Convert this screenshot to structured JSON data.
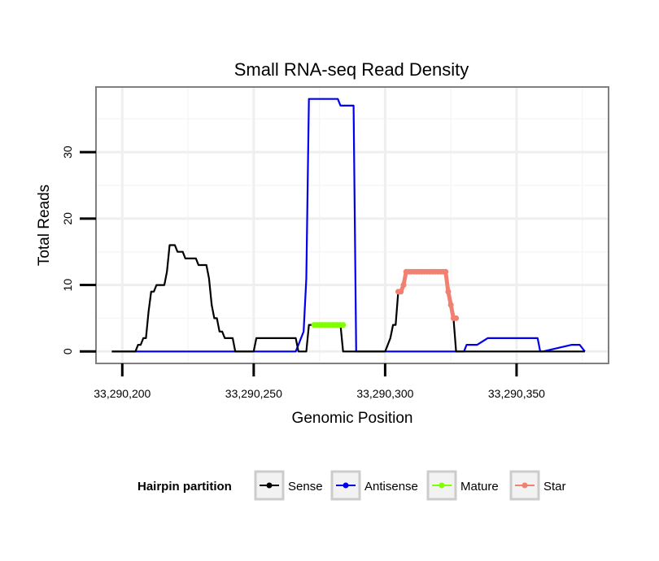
{
  "chart_data": {
    "type": "line",
    "title": "Small RNA-seq Read Density",
    "xlabel": "Genomic Position",
    "ylabel": "Total Reads",
    "xlim": [
      33290190,
      33290385
    ],
    "ylim": [
      -1.8,
      39.8
    ],
    "x_ticks": [
      33290200,
      33290250,
      33290300,
      33290350
    ],
    "x_tick_labels": [
      "33,290,200",
      "33,290,250",
      "33,290,300",
      "33,290,350"
    ],
    "y_ticks": [
      0,
      10,
      20,
      30
    ],
    "y_tick_labels": [
      "0",
      "10",
      "20",
      "30"
    ],
    "grid": true,
    "legend": {
      "title": "Hairpin partition",
      "position": "bottom",
      "entries": [
        "Sense",
        "Antisense",
        "Mature",
        "Star"
      ]
    },
    "series": [
      {
        "name": "Sense",
        "color": "#000000",
        "markers": false,
        "x": [
          33290196,
          33290205,
          33290206,
          33290207,
          33290208,
          33290209,
          33290210,
          33290211,
          33290212,
          33290213,
          33290214,
          33290215,
          33290216,
          33290217,
          33290218,
          33290219,
          33290220,
          33290221,
          33290222,
          33290223,
          33290224,
          33290225,
          33290226,
          33290227,
          33290228,
          33290229,
          33290230,
          33290231,
          33290232,
          33290233,
          33290234,
          33290235,
          33290236,
          33290237,
          33290238,
          33290239,
          33290240,
          33290241,
          33290242,
          33290243,
          33290244,
          33290245,
          33290246,
          33290247,
          33290248,
          33290249,
          33290250,
          33290251,
          33290252,
          33290262,
          33290263,
          33290266,
          33290267,
          33290268,
          33290269,
          33290270,
          33290271,
          33290272,
          33290273,
          33290281,
          33290282,
          33290283,
          33290284,
          33290285,
          33290295,
          33290296,
          33290297,
          33290298,
          33290299,
          33290300,
          33290301,
          33290302,
          33290303,
          33290304,
          33290305,
          33290306,
          33290307,
          33290308,
          33290309,
          33290310,
          33290311,
          33290319,
          33290320,
          33290321,
          33290322,
          33290323,
          33290324,
          33290325,
          33290326,
          33290327,
          33290328,
          33290376
        ],
        "y": [
          0,
          0,
          1,
          1,
          2,
          2,
          6,
          9,
          9,
          10,
          10,
          10,
          10,
          12,
          16,
          16,
          16,
          15,
          15,
          15,
          14,
          14,
          14,
          14,
          14,
          13,
          13,
          13,
          13,
          11,
          7,
          5,
          5,
          3,
          3,
          2,
          2,
          2,
          2,
          0,
          0,
          0,
          0,
          0,
          0,
          0,
          0,
          2,
          2,
          2,
          2,
          2,
          0,
          0,
          0,
          0,
          4,
          4,
          4,
          4,
          4,
          4,
          0,
          0,
          0,
          0,
          0,
          0,
          0,
          0,
          1,
          2,
          4,
          4,
          9,
          9,
          10,
          12,
          12,
          12,
          12,
          12,
          12,
          12,
          12,
          12,
          9,
          7,
          5,
          0,
          0,
          0
        ]
      },
      {
        "name": "Antisense",
        "color": "#0000ee",
        "markers": false,
        "x": [
          33290196,
          33290225,
          33290226,
          33290231,
          33290232,
          33290263,
          33290264,
          33290266,
          33290267,
          33290268,
          33290269,
          33290270,
          33290271,
          33290272,
          33290273,
          33290281,
          33290282,
          33290283,
          33290284,
          33290285,
          33290286,
          33290287,
          33290288,
          33290289,
          33290290,
          33290319,
          33290320,
          33290321,
          33290322,
          33290323,
          33290324,
          33290328,
          33290329,
          33290330,
          33290331,
          33290332,
          33290333,
          33290334,
          33290335,
          33290339,
          33290340,
          33290341,
          33290342,
          33290354,
          33290355,
          33290356,
          33290357,
          33290358,
          33290359,
          33290360,
          33290371,
          33290372,
          33290374,
          33290376
        ],
        "y": [
          0,
          0,
          0,
          0,
          0,
          0,
          0,
          0,
          1,
          2,
          3,
          11,
          38,
          38,
          38,
          38,
          38,
          37,
          37,
          37,
          37,
          37,
          37,
          0,
          0,
          0,
          0,
          0,
          0,
          0,
          0,
          0,
          0,
          0,
          1,
          1,
          1,
          1,
          1,
          2,
          2,
          2,
          2,
          2,
          2,
          2,
          2,
          2,
          0,
          0,
          1,
          1,
          1,
          0
        ]
      },
      {
        "name": "Mature",
        "color": "#7fff00",
        "markers": true,
        "x": [
          33290273,
          33290274,
          33290275,
          33290276,
          33290277,
          33290278,
          33290279,
          33290280,
          33290281,
          33290282,
          33290283,
          33290284
        ],
        "y": [
          4,
          4,
          4,
          4,
          4,
          4,
          4,
          4,
          4,
          4,
          4,
          4
        ]
      },
      {
        "name": "Star",
        "color": "#f08070",
        "markers": true,
        "x": [
          33290305,
          33290306,
          33290307,
          33290308,
          33290309,
          33290310,
          33290311,
          33290312,
          33290313,
          33290314,
          33290315,
          33290316,
          33290317,
          33290318,
          33290319,
          33290320,
          33290321,
          33290322,
          33290323,
          33290324,
          33290325,
          33290326,
          33290327
        ],
        "y": [
          9,
          9,
          10,
          12,
          12,
          12,
          12,
          12,
          12,
          12,
          12,
          12,
          12,
          12,
          12,
          12,
          12,
          12,
          12,
          9,
          7,
          5,
          5
        ]
      }
    ]
  }
}
